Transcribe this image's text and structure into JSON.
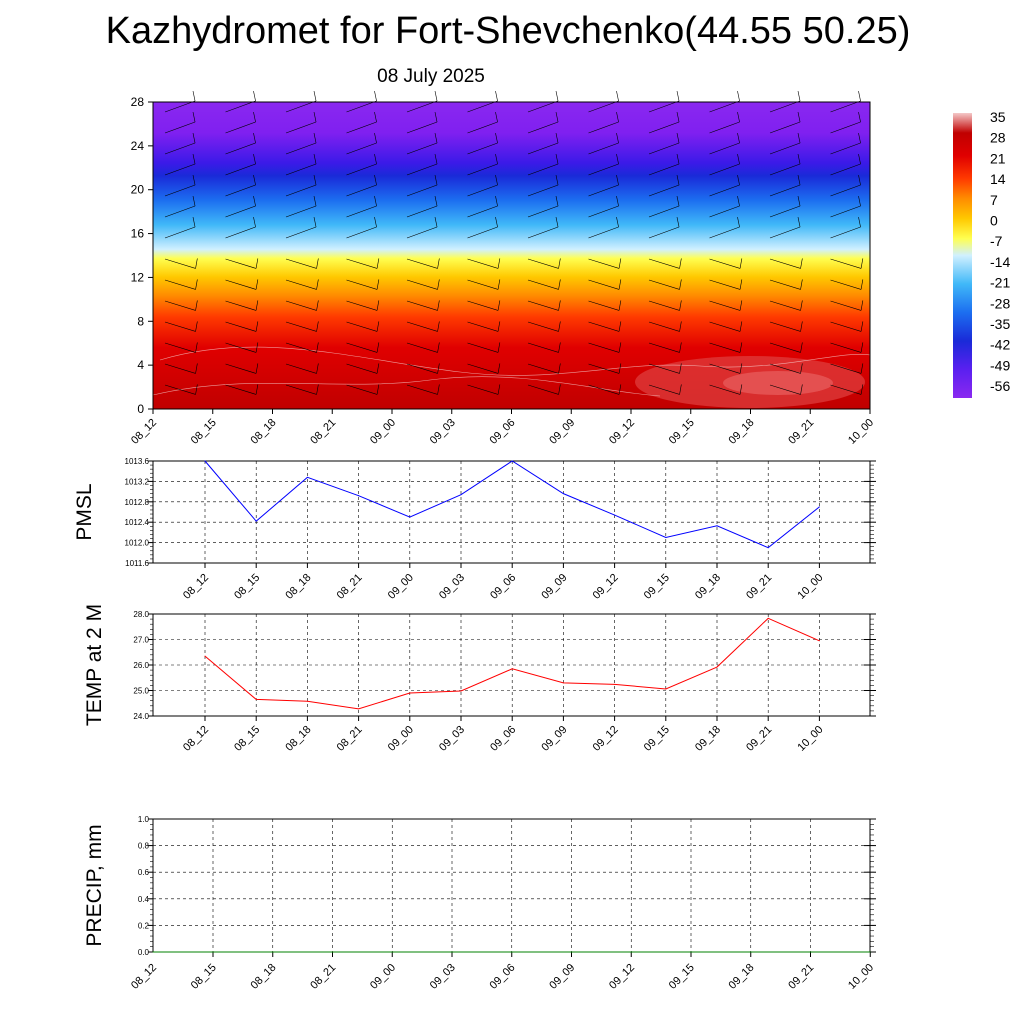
{
  "title": "Kazhydromet for Fort-Shevchenko(44.55 50.25)",
  "subtitle": "08 July 2025",
  "chart_data": [
    {
      "type": "heatmap",
      "name": "temperature cross-section with wind barbs",
      "y_ticks": [
        0,
        4,
        8,
        12,
        16,
        20,
        24,
        28
      ],
      "ylim": [
        0,
        28
      ],
      "x_ticks": [
        "08_12",
        "08_15",
        "08_18",
        "08_21",
        "09_00",
        "09_03",
        "09_06",
        "09_09",
        "09_12",
        "09_15",
        "09_18",
        "09_21",
        "10_00"
      ],
      "colorbar": {
        "labels": [
          "35",
          "28",
          "21",
          "14",
          "7",
          "0",
          "-7",
          "-14",
          "-21",
          "-28",
          "-35",
          "-42",
          "-49",
          "-56"
        ],
        "range": [
          -63,
          40
        ]
      },
      "grid": false
    },
    {
      "type": "line",
      "ylabel": "PMSL",
      "ylim": [
        1011.6,
        1013.6
      ],
      "y_ticks": [
        "1011.6",
        "1012.0",
        "1012.4",
        "1012.8",
        "1013.2",
        "1013.6"
      ],
      "categories": [
        "08_12",
        "08_15",
        "08_18",
        "08_21",
        "09_00",
        "09_03",
        "09_06",
        "09_09",
        "09_12",
        "09_15",
        "09_18",
        "09_21",
        "10_00"
      ],
      "values": [
        1013.65,
        1012.42,
        1013.28,
        1012.92,
        1012.5,
        1012.94,
        1013.63,
        1012.96,
        1012.54,
        1012.1,
        1012.33,
        1011.9,
        1012.7
      ],
      "color": "#0000ff",
      "grid": true
    },
    {
      "type": "line",
      "ylabel": "TEMP at 2 M",
      "ylim": [
        24.0,
        28.0
      ],
      "y_ticks": [
        "24.0",
        "25.0",
        "26.0",
        "27.0",
        "28.0"
      ],
      "categories": [
        "08_12",
        "08_15",
        "08_18",
        "08_21",
        "09_00",
        "09_03",
        "09_06",
        "09_09",
        "09_12",
        "09_15",
        "09_18",
        "09_21",
        "10_00"
      ],
      "values": [
        26.35,
        24.65,
        24.58,
        24.28,
        24.9,
        24.98,
        25.85,
        25.3,
        25.24,
        25.06,
        25.92,
        27.83,
        26.95
      ],
      "color": "#ff0000",
      "grid": true
    },
    {
      "type": "line",
      "ylabel": "PRECIP, mm",
      "ylim": [
        0.0,
        1.0
      ],
      "y_ticks": [
        "0.0",
        "0.2",
        "0.4",
        "0.6",
        "0.8",
        "1.0"
      ],
      "categories": [
        "08_12",
        "08_15",
        "08_18",
        "08_21",
        "09_00",
        "09_03",
        "09_06",
        "09_09",
        "09_12",
        "09_15",
        "09_18",
        "09_21",
        "10_00"
      ],
      "values": [
        0,
        0,
        0,
        0,
        0,
        0,
        0,
        0,
        0,
        0,
        0,
        0,
        0
      ],
      "color": "#008000",
      "grid": true
    }
  ]
}
